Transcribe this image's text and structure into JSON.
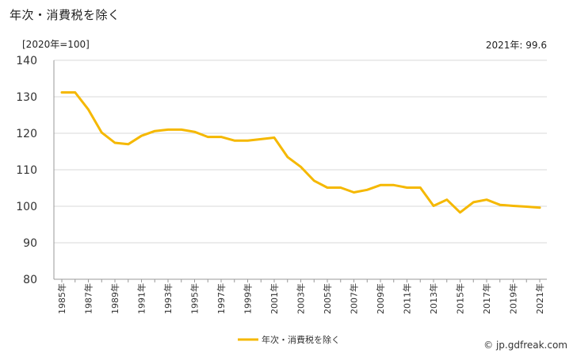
{
  "header": {
    "title": "年次・消費税を除く",
    "unit": "[2020年=100]",
    "latest": "2021年: 99.6"
  },
  "footer": {
    "credit": "© jp.gdfreak.com"
  },
  "colors": {
    "line": "#f5b800",
    "grid": "#d9d9d9",
    "axis": "#999999"
  },
  "chart_data": {
    "type": "line",
    "x": [
      1985,
      1986,
      1987,
      1988,
      1989,
      1990,
      1991,
      1992,
      1993,
      1994,
      1995,
      1996,
      1997,
      1998,
      1999,
      2000,
      2001,
      2002,
      2003,
      2004,
      2005,
      2006,
      2007,
      2008,
      2009,
      2010,
      2011,
      2012,
      2013,
      2014,
      2015,
      2016,
      2017,
      2018,
      2019,
      2020,
      2021
    ],
    "x_tick_labels": [
      "1985年",
      "1987年",
      "1989年",
      "1991年",
      "1993年",
      "1995年",
      "1997年",
      "1999年",
      "2001年",
      "2003年",
      "2005年",
      "2007年",
      "2009年",
      "2011年",
      "2013年",
      "2015年",
      "2017年",
      "2019年",
      "2021年"
    ],
    "series": [
      {
        "name": "年次・消費税を除く",
        "values": [
          131.2,
          131.2,
          126.5,
          120.2,
          117.4,
          117.0,
          119.3,
          120.6,
          121.0,
          121.0,
          120.4,
          119.0,
          119.0,
          118.0,
          118.0,
          118.4,
          118.8,
          113.5,
          110.8,
          107.0,
          105.1,
          105.1,
          103.8,
          104.5,
          105.8,
          105.8,
          105.1,
          105.1,
          100.1,
          101.8,
          98.3,
          101.1,
          101.8,
          100.4,
          100.1,
          99.9,
          99.6
        ]
      }
    ],
    "y_ticks": [
      80,
      90,
      100,
      110,
      120,
      130,
      140
    ],
    "ylim": [
      80,
      140
    ],
    "grid": true,
    "legend_position": "bottom-center"
  }
}
